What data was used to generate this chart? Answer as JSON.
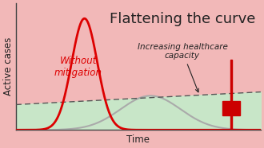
{
  "title": "Flattening the curve",
  "xlabel": "Time",
  "ylabel": "Active cases",
  "bg_pink": "#f2b8b8",
  "bg_green": "#c8e6c8",
  "red_curve_color": "#dd0000",
  "grey_curve_color": "#aaaaaa",
  "dashed_line_color": "#555555",
  "without_mitigation_label": "Without\nmitigation",
  "healthcare_label": "Increasing healthcare\ncapacity",
  "cross_color": "#cc0000",
  "title_fontsize": 13,
  "axis_label_fontsize": 8.5,
  "annotation_fontsize": 7.5,
  "red_label_fontsize": 8.5
}
